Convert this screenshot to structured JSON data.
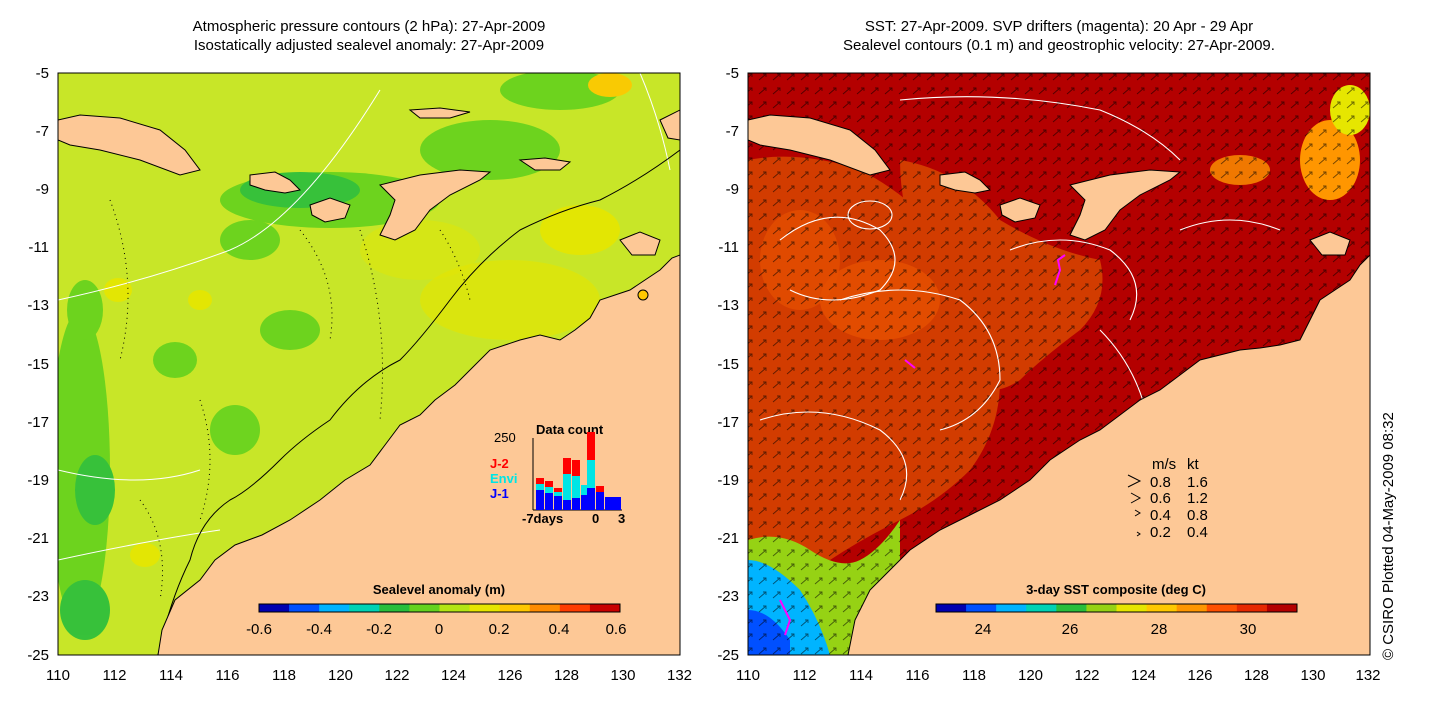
{
  "left_panel": {
    "title_line1": "Atmospheric pressure contours (2 hPa): 27-Apr-2009",
    "title_line2": "Isostatically adjusted sealevel anomaly: 27-Apr-2009",
    "colorbar_label": "Sealevel anomaly (m)",
    "colorbar_ticks": [
      "-0.6",
      "-0.4",
      "-0.2",
      "0",
      "0.2",
      "0.4",
      "0.6"
    ],
    "colorbar_colors": [
      "#0000b0",
      "#0050ff",
      "#00b4ff",
      "#00d2b4",
      "#28be3c",
      "#64d21e",
      "#b4e614",
      "#e6e600",
      "#ffc800",
      "#ff8c00",
      "#ff3c00",
      "#c80000"
    ],
    "inset": {
      "title": "Data count",
      "y_max_label": "250",
      "x_labels": [
        "-7days",
        "0",
        "3"
      ],
      "legend": [
        {
          "label": "J-2",
          "color": "#ff0000"
        },
        {
          "label": "Envi",
          "color": "#00e5e5"
        },
        {
          "label": "J-1",
          "color": "#0000ff"
        }
      ]
    }
  },
  "right_panel": {
    "title_line1": "SST: 27-Apr-2009. SVP drifters (magenta): 20 Apr - 29 Apr",
    "title_line2": "Sealevel contours (0.1 m) and geostrophic velocity: 27-Apr-2009.",
    "colorbar_label": "3-day SST composite (deg C)",
    "colorbar_ticks": [
      "24",
      "26",
      "28",
      "30"
    ],
    "colorbar_colors": [
      "#0000b0",
      "#0050ff",
      "#00b4ff",
      "#00d2b4",
      "#28be3c",
      "#96d214",
      "#e6e600",
      "#ffc800",
      "#ff9600",
      "#ff5000",
      "#e62800",
      "#b40000"
    ],
    "velocity_key": {
      "header_ms": "m/s",
      "header_kt": "kt",
      "rows": [
        {
          "ms": "0.8",
          "kt": "1.6"
        },
        {
          "ms": "0.6",
          "kt": "1.2"
        },
        {
          "ms": "0.4",
          "kt": "0.8"
        },
        {
          "ms": "0.2",
          "kt": "0.4"
        }
      ]
    }
  },
  "axes": {
    "x_ticks": [
      "110",
      "112",
      "114",
      "116",
      "118",
      "120",
      "122",
      "124",
      "126",
      "128",
      "130",
      "132"
    ],
    "y_ticks": [
      "-5",
      "-7",
      "-9",
      "-11",
      "-13",
      "-15",
      "-17",
      "-19",
      "-21",
      "-23",
      "-25"
    ]
  },
  "colors": {
    "land": "#fdc896",
    "sla_base": "#c8e628",
    "sst_base": "#b40000"
  },
  "credit": "© CSIRO Plotted 04-May-2009 08:32"
}
